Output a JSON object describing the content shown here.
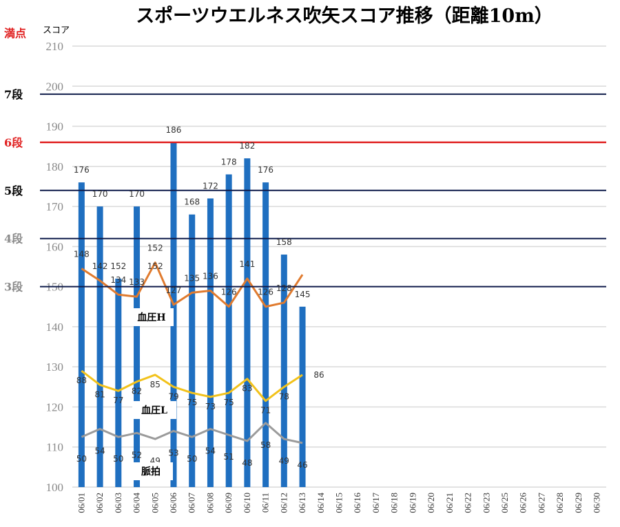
{
  "chart_data": {
    "type": "bar",
    "title": "スポーツウエルネス吹矢スコア推移（距離10m）",
    "perfect_label": "満点",
    "ylabel": "スコア",
    "ylim": [
      100,
      210
    ],
    "yticks": [
      100,
      110,
      120,
      130,
      140,
      150,
      160,
      170,
      180,
      190,
      200,
      210
    ],
    "grid": true,
    "categories": [
      "06/01",
      "06/02",
      "06/03",
      "06/04",
      "06/05",
      "06/06",
      "06/07",
      "06/08",
      "06/09",
      "06/10",
      "06/11",
      "06/12",
      "06/13",
      "06/14",
      "06/15",
      "06/16",
      "06/17",
      "06/18",
      "06/19",
      "06/20",
      "06/21",
      "06/22",
      "06/23",
      "06/25",
      "06/26",
      "06/27",
      "06/28",
      "06/29",
      "06/30"
    ],
    "score": {
      "color": "#1f6fc0",
      "points": [
        {
          "x": "06/01",
          "y": 176
        },
        {
          "x": "06/02",
          "y": 170
        },
        {
          "x": "06/03",
          "y": 152
        },
        {
          "x": "06/04",
          "y": 170
        },
        {
          "x": "06/05",
          "y": null,
          "label": "152"
        },
        {
          "x": "06/06",
          "y": 186
        },
        {
          "x": "06/07",
          "y": 168
        },
        {
          "x": "06/08",
          "y": 172
        },
        {
          "x": "06/09",
          "y": 178
        },
        {
          "x": "06/10",
          "y": 182
        },
        {
          "x": "06/11",
          "y": 176
        },
        {
          "x": "06/12",
          "y": 158
        },
        {
          "x": "06/13",
          "y": 145
        }
      ]
    },
    "lines": [
      {
        "name": "血圧H",
        "color": "#e07b2f",
        "values": [
          148,
          142,
          134,
          133,
          152,
          127,
          135,
          136,
          126,
          141,
          126,
          128,
          null
        ],
        "plot_y": [
          154.5,
          151.5,
          148,
          147.5,
          156,
          145.5,
          148.5,
          149,
          145,
          152,
          145,
          146,
          153
        ]
      },
      {
        "name": "血圧L",
        "color": "#f2c21b",
        "values": [
          88,
          81,
          77,
          82,
          85,
          79,
          75,
          73,
          75,
          83,
          71,
          78,
          86
        ],
        "plot_y": [
          129,
          125.5,
          124,
          126.3,
          128,
          125,
          123.5,
          122.5,
          123.5,
          127,
          121.5,
          125,
          128
        ]
      },
      {
        "name": "脈拍",
        "color": "#9b9b9b",
        "values": [
          50,
          54,
          50,
          52,
          49,
          53,
          50,
          54,
          51,
          48,
          58,
          49,
          46
        ],
        "plot_y": [
          112.5,
          114.5,
          112.5,
          113.5,
          112,
          114,
          112.5,
          114.5,
          113,
          111.5,
          116,
          112,
          111
        ]
      }
    ],
    "ref_lines": [
      {
        "label": "7段",
        "value": 198,
        "color": "#0f1b4a",
        "label_color": "#000000"
      },
      {
        "label": "6段",
        "value": 186,
        "color": "#e02020",
        "label_color": "#e02020"
      },
      {
        "label": "5段",
        "value": 174,
        "color": "#0f1b4a",
        "label_color": "#000000"
      },
      {
        "label": "4段",
        "value": 162,
        "color": "#0f1b4a",
        "label_color": "#8a8a8a"
      },
      {
        "label": "3段",
        "value": 150,
        "color": "#0f1b4a",
        "label_color": "#8a8a8a"
      }
    ]
  }
}
